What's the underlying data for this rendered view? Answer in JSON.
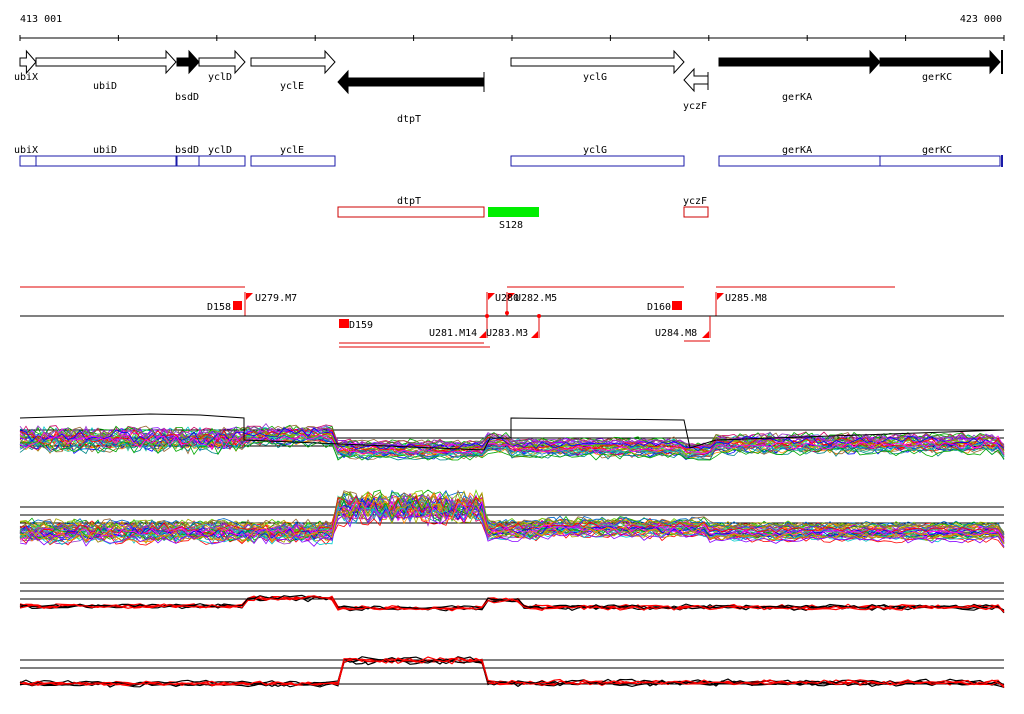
{
  "ruler": {
    "start_label": "413 001",
    "end_label": "423 000"
  },
  "genes": [
    {
      "name": "ubiX",
      "x1": 20,
      "x2": 36,
      "dir": "right",
      "filled": false,
      "label": "ubiX"
    },
    {
      "name": "ubiD",
      "x1": 36,
      "x2": 176,
      "dir": "right",
      "filled": false,
      "label": "ubiD"
    },
    {
      "name": "bsdD",
      "x1": 177,
      "x2": 199,
      "dir": "right",
      "filled": true,
      "label": "bsdD"
    },
    {
      "name": "yclD",
      "x1": 199,
      "x2": 245,
      "dir": "right",
      "filled": false,
      "label": "yclD"
    },
    {
      "name": "yclE",
      "x1": 251,
      "x2": 335,
      "dir": "right",
      "filled": false,
      "label": "yclE"
    },
    {
      "name": "dtpT",
      "x1": 338,
      "x2": 484,
      "dir": "left",
      "filled": true,
      "label": "dtpT"
    },
    {
      "name": "yclG",
      "x1": 511,
      "x2": 684,
      "dir": "right",
      "filled": false,
      "label": "yclG"
    },
    {
      "name": "yczF",
      "x1": 684,
      "x2": 708,
      "dir": "left",
      "filled": false,
      "label": "yczF"
    },
    {
      "name": "gerKA",
      "x1": 719,
      "x2": 880,
      "dir": "right",
      "filled": true,
      "label": "gerKA"
    },
    {
      "name": "gerKC",
      "x1": 880,
      "x2": 1000,
      "dir": "right",
      "filled": true,
      "label": "gerKC"
    }
  ],
  "operon_forward": [
    {
      "label": "ubiX",
      "x1": 20,
      "x2": 36
    },
    {
      "label": "ubiD",
      "x1": 36,
      "x2": 176
    },
    {
      "label": "bsdD",
      "x1": 177,
      "x2": 199
    },
    {
      "label": "yclD",
      "x1": 199,
      "x2": 245
    },
    {
      "label": "yclE",
      "x1": 251,
      "x2": 335
    },
    {
      "label": "yclG",
      "x1": 511,
      "x2": 684
    },
    {
      "label": "gerKA",
      "x1": 719,
      "x2": 880
    },
    {
      "label": "gerKC",
      "x1": 880,
      "x2": 1000
    }
  ],
  "operon_reverse": [
    {
      "label": "dtpT",
      "x1": 338,
      "x2": 484
    },
    {
      "label": "yczF",
      "x1": 684,
      "x2": 708
    }
  ],
  "rna_feature": {
    "label": "S128",
    "color": "#00ee00"
  },
  "segments_labels": {
    "D158": "D158",
    "U279": "U279.M7",
    "U280": "U280",
    "U282": "U282.M5",
    "D160": "D160",
    "U285": "U285.M8",
    "D159": "D159",
    "U281": "U281.M14",
    "U283": "U283.M3",
    "U284": "U284.M8"
  },
  "colors": {
    "operon": "#1a1aa8",
    "reverse": "#cc0000",
    "marker": "#ff0000",
    "rna": "#00ee00"
  }
}
